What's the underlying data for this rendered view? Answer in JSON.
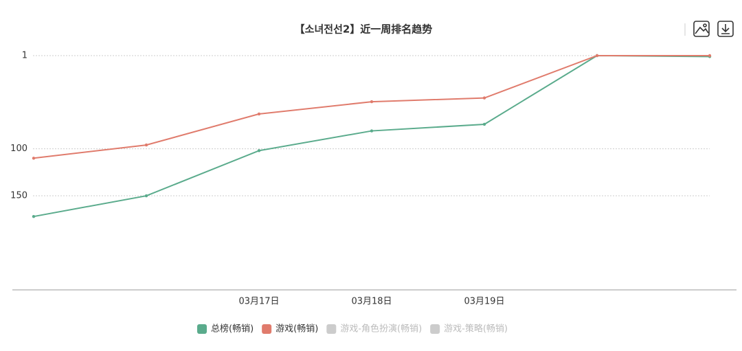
{
  "chart_data": {
    "type": "line",
    "title": "【소녀전선2】近一周排名趋势",
    "categories": [
      null,
      null,
      "03月17日",
      "03月18日",
      "03月19日",
      null,
      null
    ],
    "series": [
      {
        "name": "总榜(畅销)",
        "color": "#5aab8c",
        "values": [
          172,
          150,
          102,
          81,
          74,
          1,
          2
        ]
      },
      {
        "name": "游戏(畅销)",
        "color": "#e07b6c",
        "values": [
          110,
          96,
          63,
          50,
          46,
          1,
          1
        ]
      },
      {
        "name": "游戏-角色扮演(畅销)",
        "color": "#cccccc",
        "values": [
          null,
          null,
          null,
          null,
          null,
          null,
          null
        ]
      },
      {
        "name": "游戏-策略(畅销)",
        "color": "#cccccc",
        "values": [
          null,
          null,
          null,
          null,
          null,
          null,
          null
        ]
      }
    ],
    "ylim": [
      1,
      250
    ],
    "yticks": [
      1,
      100,
      150
    ],
    "y_inverted": true,
    "grid": true,
    "legend": "bottom"
  }
}
